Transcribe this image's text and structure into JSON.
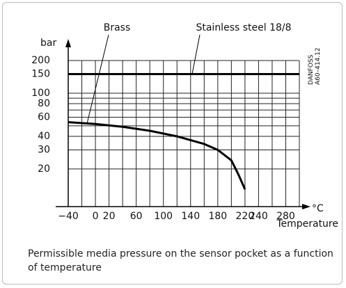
{
  "chart_data": {
    "type": "line",
    "y_label": "bar",
    "x_unit": "°C",
    "x_label": "Temperature",
    "code": "DANFOSS\nA60–414.12",
    "caption": "Permissible media pressure on the sensor pocket as a function of temperature",
    "xlim": [
      -40,
      300
    ],
    "xticks": [
      {
        "value": -40,
        "label": "−40"
      },
      0,
      20,
      60,
      100,
      140,
      180,
      220,
      240,
      280
    ],
    "xminor": [
      -20,
      40,
      80,
      120,
      160,
      200,
      260,
      300
    ],
    "ylim": [
      9,
      200
    ],
    "yticks": [
      20,
      30,
      40,
      60,
      80,
      100,
      150,
      200
    ],
    "yminor": [
      50,
      70,
      90
    ],
    "log_y": true,
    "grid": true,
    "series": [
      {
        "name": "Brass",
        "color": "#000000",
        "x": [
          -40,
          0,
          40,
          80,
          120,
          160,
          180,
          200,
          210,
          220
        ],
        "values": [
          54,
          52,
          49,
          45,
          40,
          34,
          30,
          24,
          18,
          13
        ]
      },
      {
        "name": "Stainless steel 18/8",
        "color": "#000000",
        "x": [
          -40,
          300
        ],
        "values": [
          150,
          150
        ]
      }
    ]
  }
}
